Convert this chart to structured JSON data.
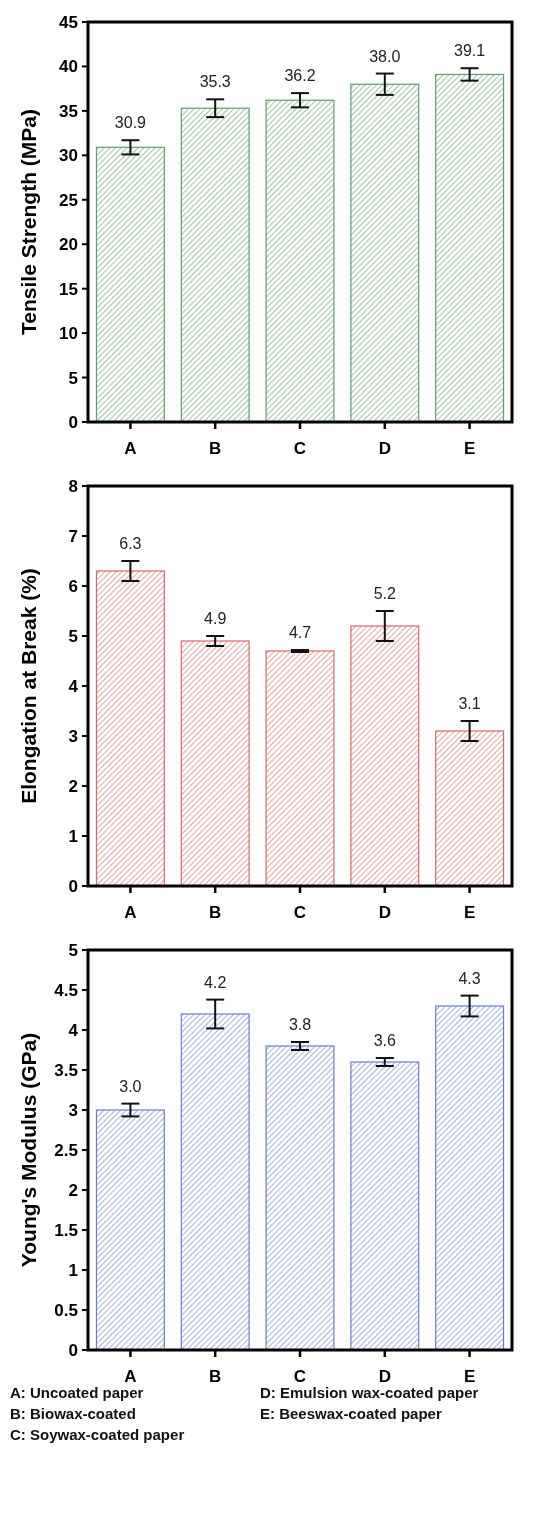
{
  "chart_data": [
    {
      "type": "bar",
      "categories": [
        "A",
        "B",
        "C",
        "D",
        "E"
      ],
      "values": [
        30.9,
        35.3,
        36.2,
        38.0,
        39.1
      ],
      "errors": [
        0.8,
        1.0,
        0.8,
        1.2,
        0.7
      ],
      "color": "#5f9e6e",
      "ylabel": "Tensile Strength (MPa)",
      "ylim": [
        0,
        45
      ],
      "yticks": [
        0,
        5,
        10,
        15,
        20,
        25,
        30,
        35,
        40,
        45
      ],
      "data_labels": true,
      "value_labels": [
        "30.9",
        "35.3",
        "36.2",
        "38.0",
        "39.1"
      ]
    },
    {
      "type": "bar",
      "categories": [
        "A",
        "B",
        "C",
        "D",
        "E"
      ],
      "values": [
        6.3,
        4.9,
        4.7,
        5.2,
        3.1
      ],
      "errors": [
        0.2,
        0.1,
        0.02,
        0.3,
        0.2
      ],
      "color": "#d46a6a",
      "ylabel": "Elongation at Break (%)",
      "ylim": [
        0,
        8
      ],
      "yticks": [
        0,
        1,
        2,
        3,
        4,
        5,
        6,
        7,
        8
      ],
      "data_labels": true,
      "value_labels": [
        "6.3",
        "4.9",
        "4.7",
        "5.2",
        "3.1"
      ]
    },
    {
      "type": "bar",
      "categories": [
        "A",
        "B",
        "C",
        "D",
        "E"
      ],
      "values": [
        3.0,
        4.2,
        3.8,
        3.6,
        4.3
      ],
      "errors": [
        0.08,
        0.18,
        0.05,
        0.05,
        0.13
      ],
      "color": "#6b7fc8",
      "ylabel": "Young's Modulus (GPa)",
      "ylim": [
        0,
        5
      ],
      "yticks": [
        0,
        0.5,
        1,
        1.5,
        2,
        2.5,
        3,
        3.5,
        4,
        4.5,
        5
      ],
      "data_labels": true,
      "value_labels": [
        "3.0",
        "4.2",
        "3.8",
        "3.6",
        "4.3"
      ],
      "annotations": [
        "A: Uncoated paper",
        "B: Biowax-coated",
        "C: Soywax-coated paper",
        "D: Emulsion wax-coated paper",
        "E: Beeswax-coated paper"
      ]
    }
  ]
}
